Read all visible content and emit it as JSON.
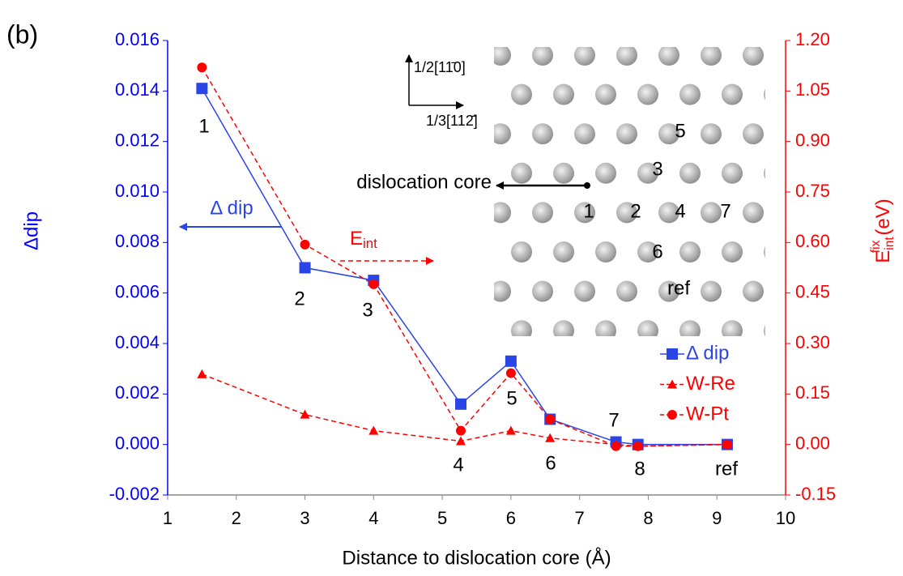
{
  "chart_data": {
    "type": "line",
    "panel_label": "(b)",
    "x_label": "Distance to dislocation core (Å)",
    "y_label": "Δdip",
    "y2_label": {
      "text": "E",
      "sub": "int",
      "sup": "fix",
      "unit": "(eV)"
    },
    "x": [
      1.5,
      3,
      4,
      5.27,
      6,
      6.57,
      7.53,
      7.85,
      9.15
    ],
    "point_labels": [
      "1",
      "2",
      "3",
      "4",
      "5",
      "6",
      "7",
      "8",
      "ref"
    ],
    "series": [
      {
        "name": "Δ dip",
        "color": "#2a45e6",
        "marker": "square",
        "dash": false,
        "values": [
          0.0141,
          0.007,
          0.0065,
          0.0016,
          0.0033,
          0.001,
          0.0001,
          0.0,
          0.0
        ]
      },
      {
        "name": "W-Re",
        "color": "#ff0000",
        "marker": "triangle",
        "dash": true,
        "axis": "y2",
        "values": [
          0.209,
          0.089,
          0.041,
          0.01,
          0.041,
          0.019,
          0.0,
          -0.005,
          0.0
        ]
      },
      {
        "name": "W-Pt",
        "color": "#ff0000",
        "marker": "circle",
        "dash": true,
        "axis": "y2",
        "values": [
          1.12,
          0.594,
          0.476,
          0.041,
          0.212,
          0.075,
          -0.005,
          -0.005,
          0.0
        ]
      }
    ],
    "xlim": [
      1,
      10
    ],
    "xticks": [
      1,
      2,
      3,
      4,
      5,
      6,
      7,
      8,
      9,
      10
    ],
    "ylim": [
      -0.002,
      0.016
    ],
    "yticks": [
      -0.002,
      {
        "value": 0,
        "label": "0.000"
      },
      0.002,
      0.004,
      0.006,
      0.008,
      {
        "value": 0.01,
        "label": "0.010"
      },
      0.012,
      0.014,
      0.016
    ],
    "y2lim": [
      -0.15,
      1.2
    ],
    "y2ticks": [
      -0.15,
      {
        "value": 0,
        "label": "0.00"
      },
      0.15,
      {
        "value": 0.3,
        "label": "0.30"
      },
      0.45,
      {
        "value": 0.6,
        "label": "0.60"
      },
      0.75,
      {
        "value": 0.9,
        "label": "0.90"
      },
      1.05,
      {
        "value": 1.2,
        "label": "1.20"
      }
    ],
    "y_color": "#0000ff",
    "y2_color": "#ff0000",
    "legend": "lower right",
    "annotations": {
      "dip_arrow": "Δ dip",
      "eint_arrow": {
        "text": "E",
        "sub": "int"
      },
      "axis_up": "1/2[11̄0]",
      "axis_right": "1/3[112̄]",
      "core": "dislocation core",
      "atom_labels": [
        "5",
        "3",
        "1",
        "2",
        "4",
        "7",
        "6",
        "ref"
      ]
    }
  }
}
